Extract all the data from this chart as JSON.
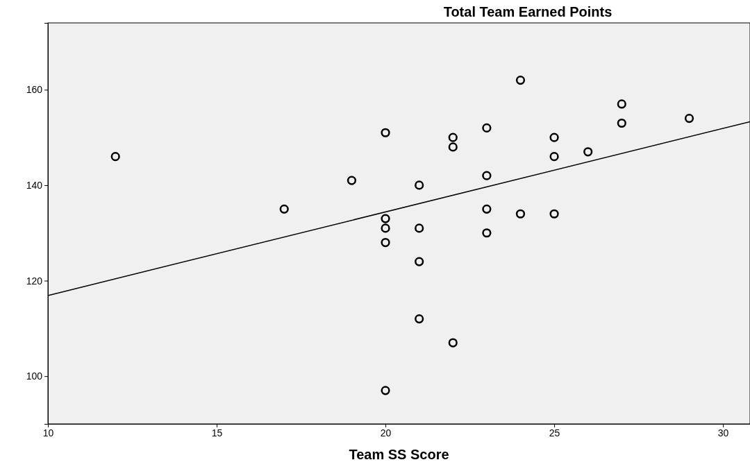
{
  "chart_data": {
    "type": "scatter",
    "xlabel": "Team SS Score",
    "ylabel": "Total Team Earned Points",
    "xlim": [
      10,
      30.8
    ],
    "ylim": [
      90,
      174
    ],
    "xticks": [
      10,
      15,
      20,
      25,
      30
    ],
    "yticks": [
      100,
      120,
      140,
      160
    ],
    "grid": false,
    "series": [
      {
        "color": "#000000",
        "marker": "circle",
        "x": [
          12,
          17,
          19,
          20,
          20,
          20,
          20,
          20,
          21,
          21,
          21,
          21,
          22,
          22,
          22,
          23,
          23,
          23,
          23,
          24,
          24,
          25,
          25,
          25,
          26,
          27,
          27,
          29
        ],
        "values": [
          146,
          135,
          141,
          151,
          133,
          131,
          128,
          97,
          140,
          131,
          124,
          112,
          150,
          148,
          107,
          152,
          142,
          135,
          130,
          162,
          134,
          150,
          146,
          134,
          147,
          157,
          153,
          154
        ]
      },
      {
        "type": "line",
        "marker": "none",
        "color": "#000000",
        "x": [
          10,
          30.8
        ],
        "values": [
          116.9,
          153.3
        ]
      }
    ]
  }
}
